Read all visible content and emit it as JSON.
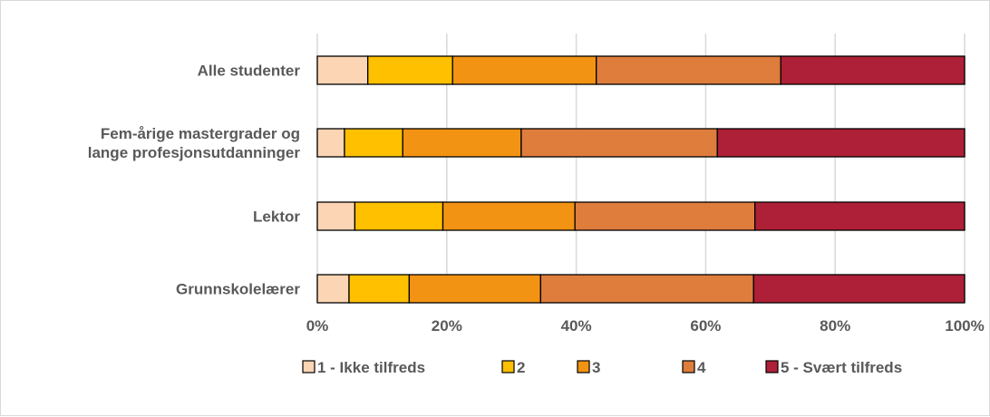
{
  "chart_data": {
    "type": "bar",
    "orientation": "horizontal",
    "stacked": "percent",
    "categories": [
      [
        "Alle studenter"
      ],
      [
        "Fem-årige mastergrader og",
        "lange profesjonsutdanninger"
      ],
      [
        "Lektor"
      ],
      [
        "Grunnskolelærer"
      ]
    ],
    "series": [
      {
        "name": "1 - Ikke tilfreds",
        "color": "#fcd5b4",
        "values": [
          7.8,
          4.2,
          5.8,
          4.9
        ]
      },
      {
        "name": "2",
        "color": "#ffc000",
        "values": [
          13.1,
          9.0,
          13.6,
          9.3
        ]
      },
      {
        "name": "3",
        "color": "#f39313",
        "values": [
          22.2,
          18.3,
          20.4,
          20.3
        ]
      },
      {
        "name": "4",
        "color": "#de7d3c",
        "values": [
          28.5,
          30.3,
          27.8,
          32.9
        ]
      },
      {
        "name": "5 - Svært tilfreds",
        "color": "#ae2037",
        "values": [
          28.4,
          38.2,
          32.4,
          32.6
        ]
      }
    ],
    "xlim": [
      0,
      100
    ],
    "xticks": [
      "0%",
      "20%",
      "40%",
      "60%",
      "80%",
      "100%"
    ],
    "grid": true,
    "legend": "bottom",
    "title": "",
    "xlabel": "",
    "ylabel": ""
  }
}
